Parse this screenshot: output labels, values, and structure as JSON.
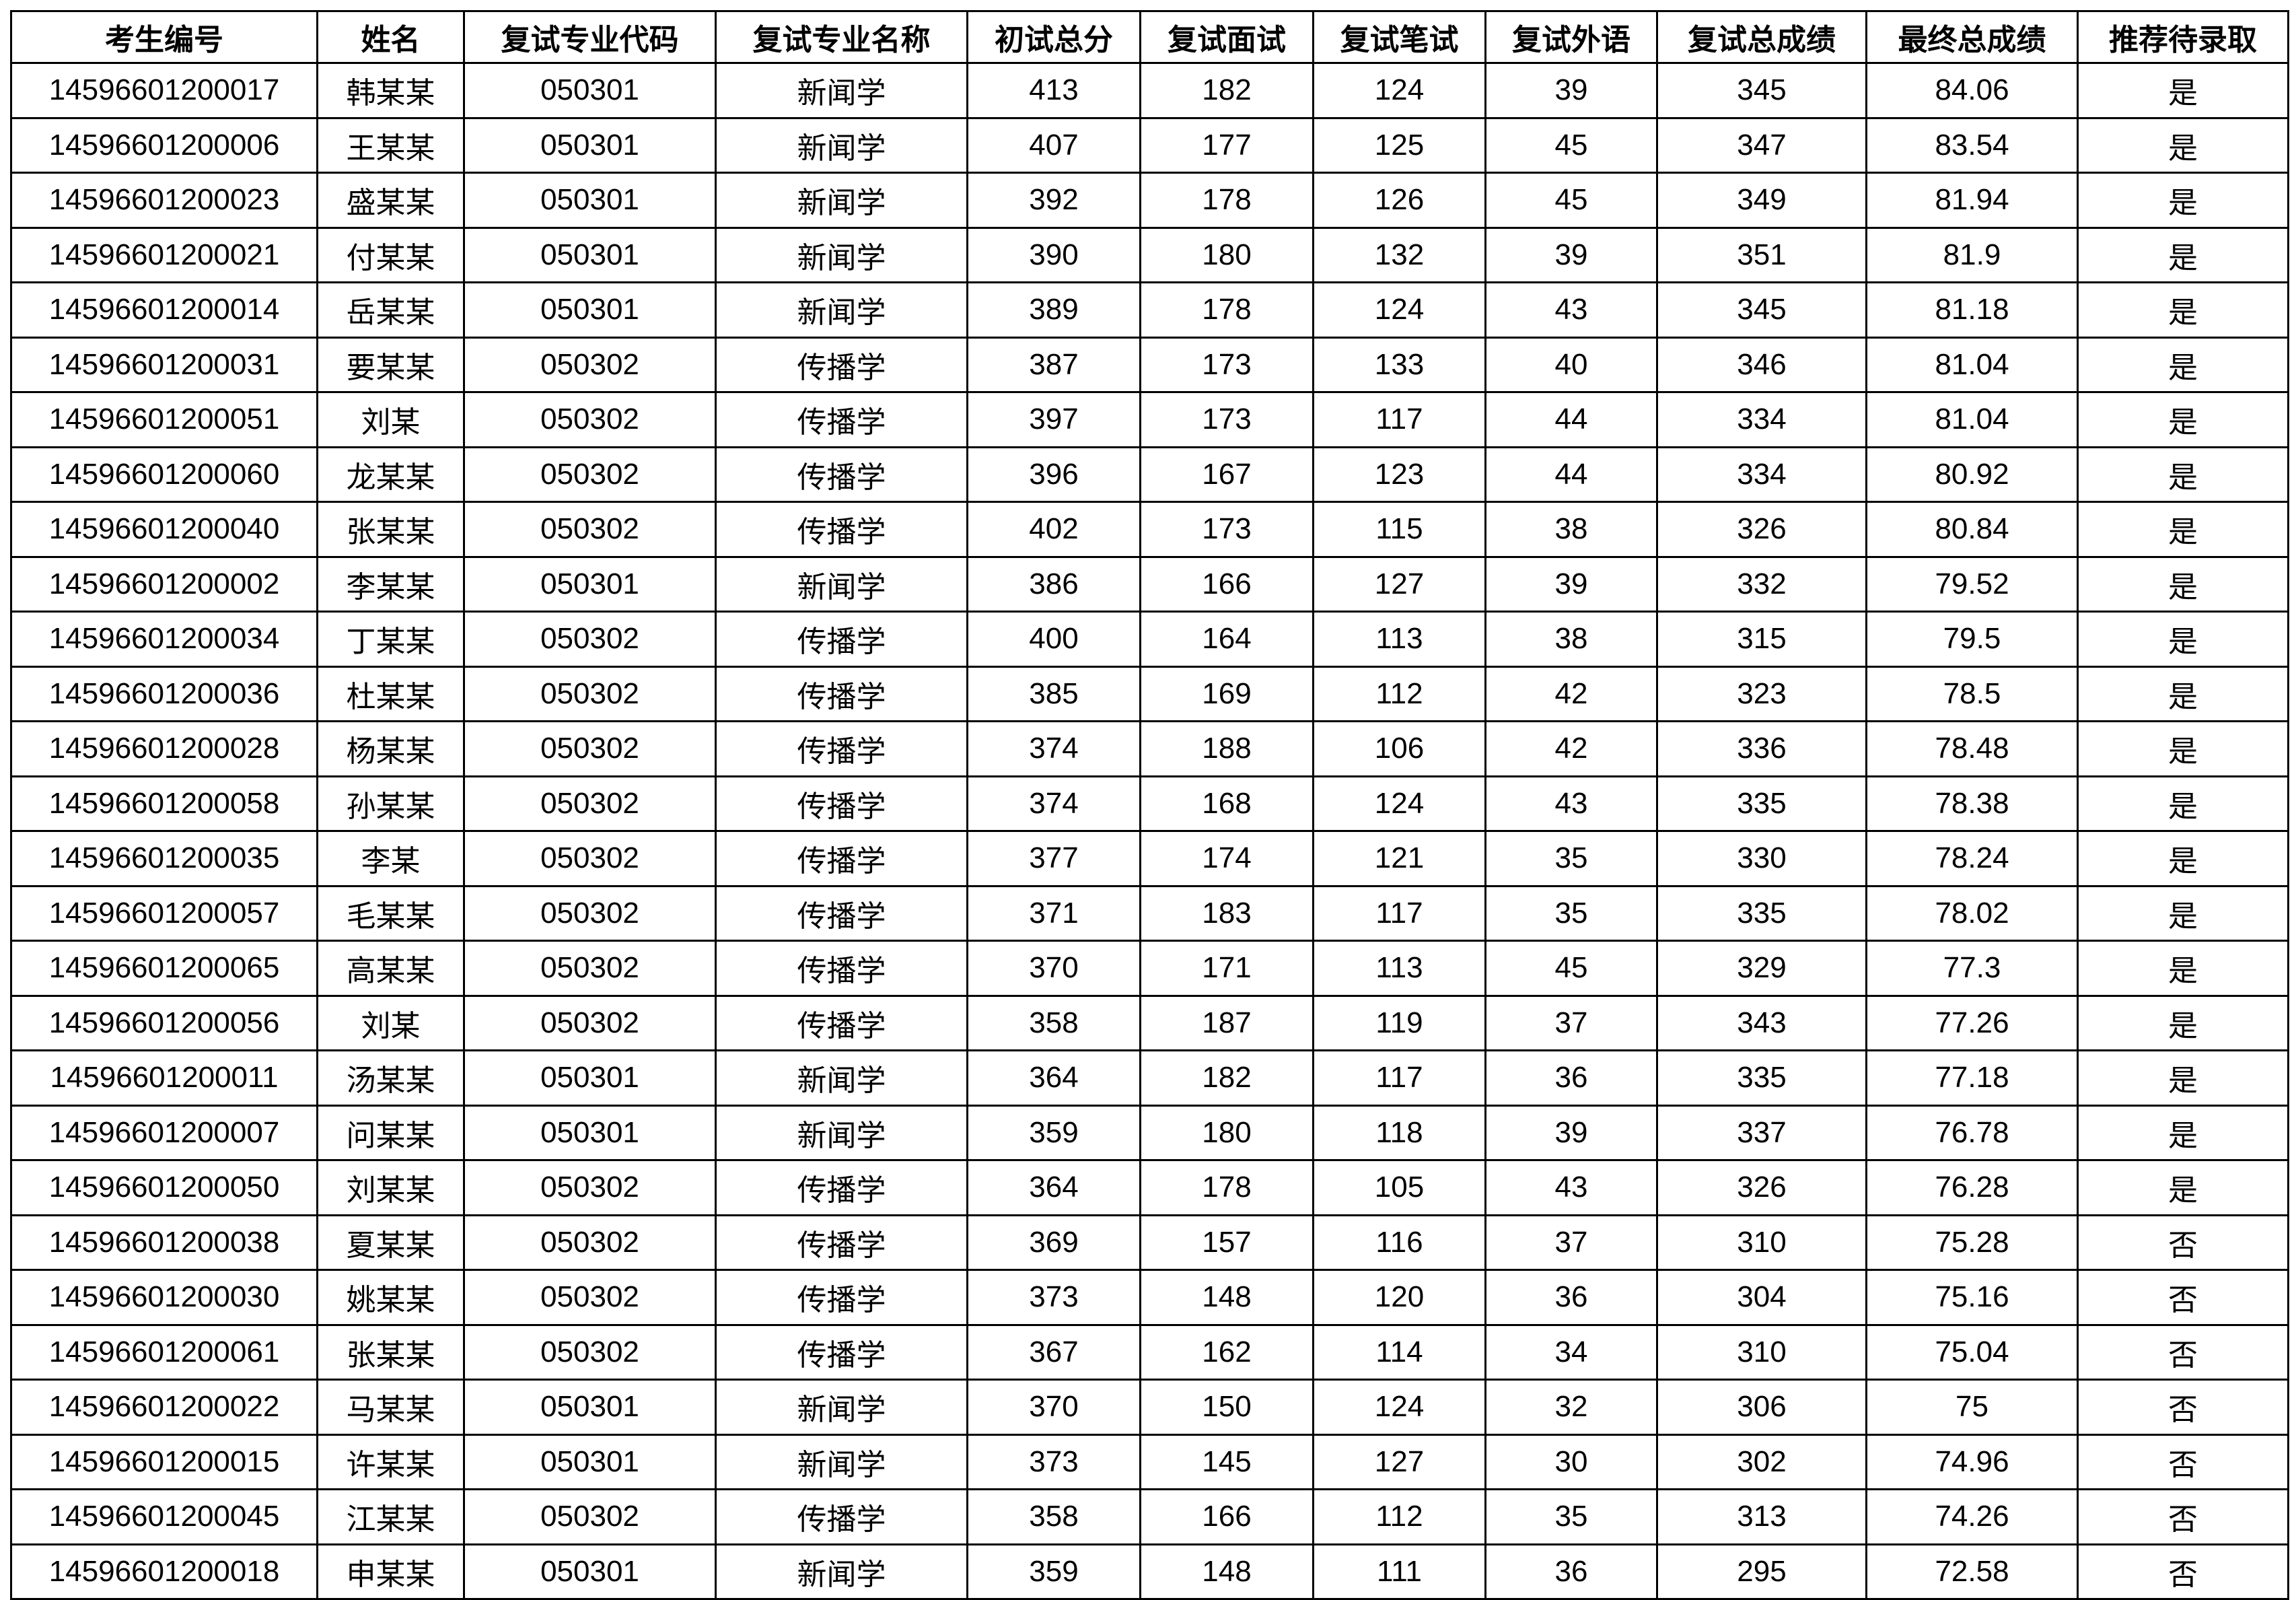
{
  "table": {
    "headers": [
      "考生编号",
      "姓名",
      "复试专业代码",
      "复试专业名称",
      "初试总分",
      "复试面试",
      "复试笔试",
      "复试外语",
      "复试总成绩",
      "最终总成绩",
      "推荐待录取"
    ],
    "rows": [
      [
        "14596601200017",
        "韩某某",
        "050301",
        "新闻学",
        "413",
        "182",
        "124",
        "39",
        "345",
        "84.06",
        "是"
      ],
      [
        "14596601200006",
        "王某某",
        "050301",
        "新闻学",
        "407",
        "177",
        "125",
        "45",
        "347",
        "83.54",
        "是"
      ],
      [
        "14596601200023",
        "盛某某",
        "050301",
        "新闻学",
        "392",
        "178",
        "126",
        "45",
        "349",
        "81.94",
        "是"
      ],
      [
        "14596601200021",
        "付某某",
        "050301",
        "新闻学",
        "390",
        "180",
        "132",
        "39",
        "351",
        "81.9",
        "是"
      ],
      [
        "14596601200014",
        "岳某某",
        "050301",
        "新闻学",
        "389",
        "178",
        "124",
        "43",
        "345",
        "81.18",
        "是"
      ],
      [
        "14596601200031",
        "要某某",
        "050302",
        "传播学",
        "387",
        "173",
        "133",
        "40",
        "346",
        "81.04",
        "是"
      ],
      [
        "14596601200051",
        "刘某",
        "050302",
        "传播学",
        "397",
        "173",
        "117",
        "44",
        "334",
        "81.04",
        "是"
      ],
      [
        "14596601200060",
        "龙某某",
        "050302",
        "传播学",
        "396",
        "167",
        "123",
        "44",
        "334",
        "80.92",
        "是"
      ],
      [
        "14596601200040",
        "张某某",
        "050302",
        "传播学",
        "402",
        "173",
        "115",
        "38",
        "326",
        "80.84",
        "是"
      ],
      [
        "14596601200002",
        "李某某",
        "050301",
        "新闻学",
        "386",
        "166",
        "127",
        "39",
        "332",
        "79.52",
        "是"
      ],
      [
        "14596601200034",
        "丁某某",
        "050302",
        "传播学",
        "400",
        "164",
        "113",
        "38",
        "315",
        "79.5",
        "是"
      ],
      [
        "14596601200036",
        "杜某某",
        "050302",
        "传播学",
        "385",
        "169",
        "112",
        "42",
        "323",
        "78.5",
        "是"
      ],
      [
        "14596601200028",
        "杨某某",
        "050302",
        "传播学",
        "374",
        "188",
        "106",
        "42",
        "336",
        "78.48",
        "是"
      ],
      [
        "14596601200058",
        "孙某某",
        "050302",
        "传播学",
        "374",
        "168",
        "124",
        "43",
        "335",
        "78.38",
        "是"
      ],
      [
        "14596601200035",
        "李某",
        "050302",
        "传播学",
        "377",
        "174",
        "121",
        "35",
        "330",
        "78.24",
        "是"
      ],
      [
        "14596601200057",
        "毛某某",
        "050302",
        "传播学",
        "371",
        "183",
        "117",
        "35",
        "335",
        "78.02",
        "是"
      ],
      [
        "14596601200065",
        "高某某",
        "050302",
        "传播学",
        "370",
        "171",
        "113",
        "45",
        "329",
        "77.3",
        "是"
      ],
      [
        "14596601200056",
        "刘某",
        "050302",
        "传播学",
        "358",
        "187",
        "119",
        "37",
        "343",
        "77.26",
        "是"
      ],
      [
        "14596601200011",
        "汤某某",
        "050301",
        "新闻学",
        "364",
        "182",
        "117",
        "36",
        "335",
        "77.18",
        "是"
      ],
      [
        "14596601200007",
        "问某某",
        "050301",
        "新闻学",
        "359",
        "180",
        "118",
        "39",
        "337",
        "76.78",
        "是"
      ],
      [
        "14596601200050",
        "刘某某",
        "050302",
        "传播学",
        "364",
        "178",
        "105",
        "43",
        "326",
        "76.28",
        "是"
      ],
      [
        "14596601200038",
        "夏某某",
        "050302",
        "传播学",
        "369",
        "157",
        "116",
        "37",
        "310",
        "75.28",
        "否"
      ],
      [
        "14596601200030",
        "姚某某",
        "050302",
        "传播学",
        "373",
        "148",
        "120",
        "36",
        "304",
        "75.16",
        "否"
      ],
      [
        "14596601200061",
        "张某某",
        "050302",
        "传播学",
        "367",
        "162",
        "114",
        "34",
        "310",
        "75.04",
        "否"
      ],
      [
        "14596601200022",
        "马某某",
        "050301",
        "新闻学",
        "370",
        "150",
        "124",
        "32",
        "306",
        "75",
        "否"
      ],
      [
        "14596601200015",
        "许某某",
        "050301",
        "新闻学",
        "373",
        "145",
        "127",
        "30",
        "302",
        "74.96",
        "否"
      ],
      [
        "14596601200045",
        "江某某",
        "050302",
        "传播学",
        "358",
        "166",
        "112",
        "35",
        "313",
        "74.26",
        "否"
      ],
      [
        "14596601200018",
        "申某某",
        "050301",
        "新闻学",
        "359",
        "148",
        "111",
        "36",
        "295",
        "72.58",
        "否"
      ]
    ]
  }
}
